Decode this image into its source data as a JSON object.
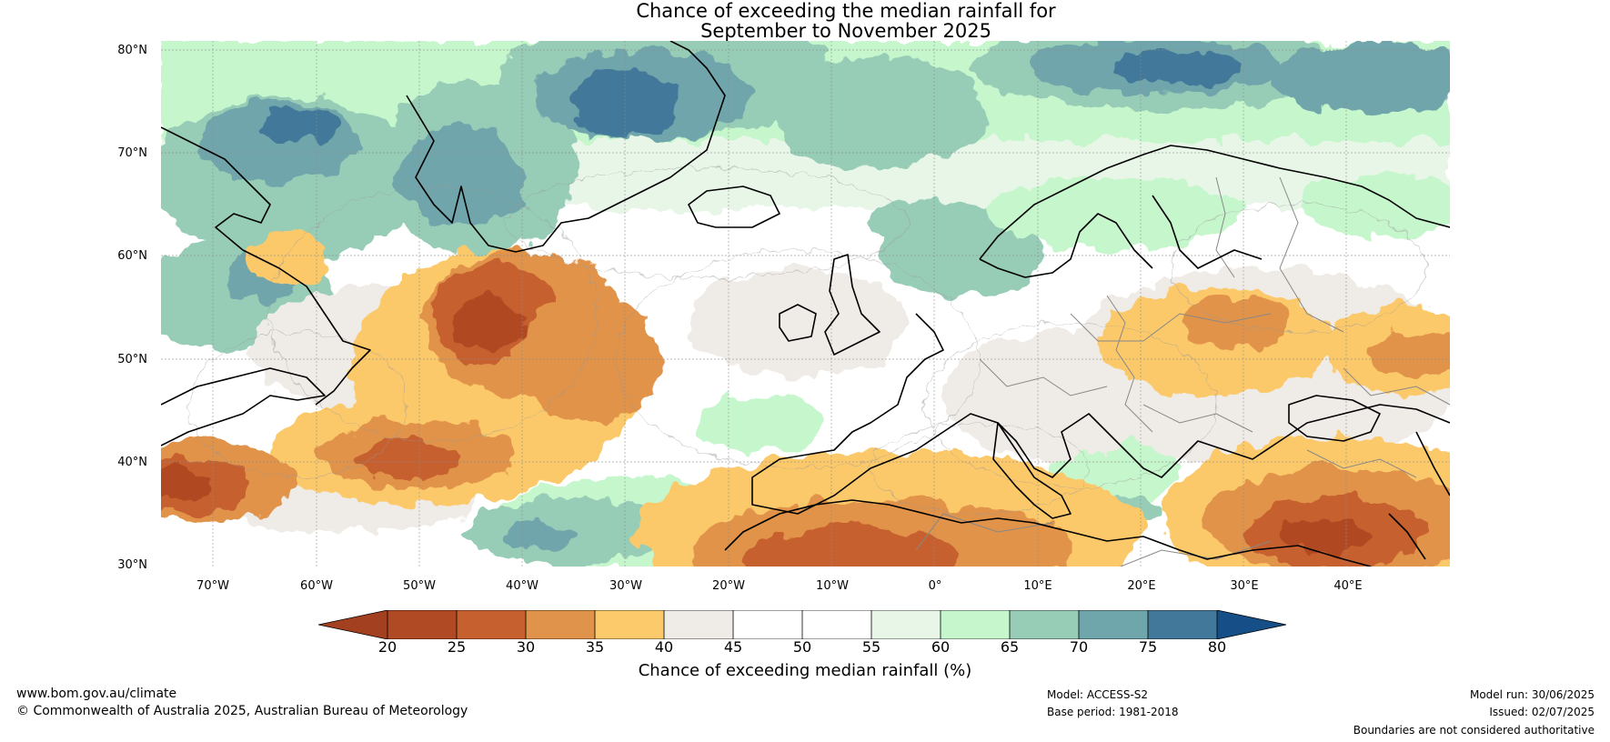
{
  "title": {
    "line1": "Chance of exceeding the median rainfall for",
    "line2": "September to November 2025"
  },
  "map": {
    "latitude_labels": [
      "80°N",
      "70°N",
      "60°N",
      "50°N",
      "40°N",
      "30°N"
    ],
    "longitude_labels": [
      "70°W",
      "60°W",
      "50°W",
      "40°W",
      "30°W",
      "20°W",
      "10°W",
      "0°",
      "10°E",
      "20°E",
      "30°E",
      "40°E"
    ],
    "colors": {
      "dry_extreme": "#a0401c",
      "wet_extreme": "#15508a",
      "coastline": "#000000",
      "borders": "#888888"
    }
  },
  "colorbar": {
    "ticks": [
      "20",
      "25",
      "30",
      "35",
      "40",
      "45",
      "50",
      "55",
      "60",
      "65",
      "70",
      "75",
      "80"
    ],
    "label": "Chance of exceeding median rainfall (%)",
    "colors": {
      "below_20": "#a3401f",
      "20_25": "#b04a24",
      "25_30": "#c6612f",
      "30_35": "#e0934a",
      "35_40": "#fcc96b",
      "40_45": "#efebe7",
      "45_50": "#ffffff",
      "50_55": "#ffffff",
      "55_60": "#e8f6e8",
      "60_65": "#c6f7cc",
      "65_70": "#97ccb6",
      "70_75": "#6fa6ab",
      "75_80": "#42799a",
      "above_80": "#164f88"
    }
  },
  "footer": {
    "website": "www.bom.gov.au/climate",
    "copyright": "© Commonwealth of Australia 2025, Australian Bureau of Meteorology",
    "model": "Model: ACCESS-S2",
    "base_period": "Base period: 1981-2018",
    "model_run": "Model run: 30/06/2025",
    "issued": "Issued: 02/07/2025",
    "disclaimer": "Boundaries are not considered authoritative"
  }
}
